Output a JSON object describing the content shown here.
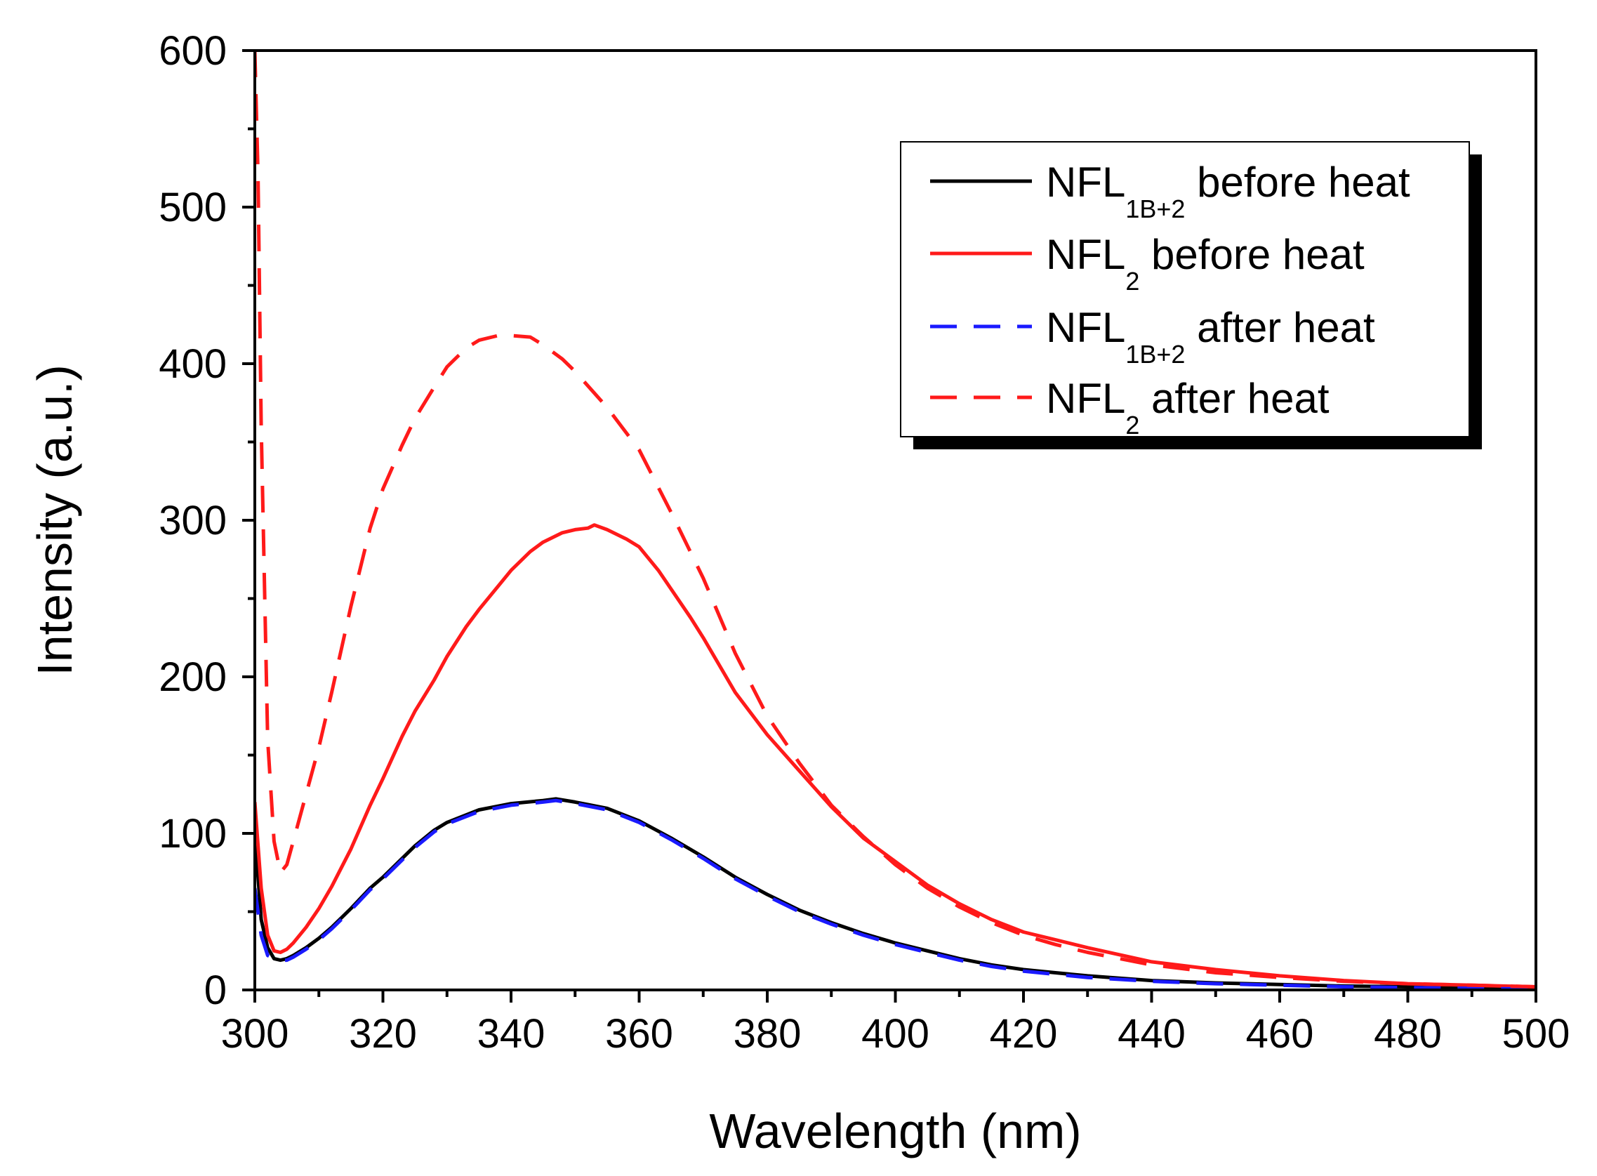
{
  "chart_data": {
    "type": "line",
    "title": "",
    "xlabel": "Wavelength (nm)",
    "ylabel": "Intensity (a.u.)",
    "xlim": [
      300,
      500
    ],
    "ylim": [
      0,
      600
    ],
    "xticks": [
      "300",
      "320",
      "340",
      "360",
      "380",
      "400",
      "420",
      "440",
      "460",
      "480",
      "500"
    ],
    "yticks": [
      "0",
      "100",
      "200",
      "300",
      "400",
      "500",
      "600"
    ],
    "grid": false,
    "legend_position": "top-right",
    "series": [
      {
        "name": "NFL1B+2 before heat",
        "legend_main": "NFL",
        "legend_sub": "1B+2",
        "legend_rest": " before heat",
        "color": "#000000",
        "dash": "solid",
        "x": [
          300,
          301,
          302,
          303,
          304,
          305,
          306,
          308,
          310,
          312,
          315,
          318,
          320,
          322,
          325,
          328,
          330,
          335,
          340,
          345,
          347,
          350,
          355,
          360,
          365,
          370,
          375,
          380,
          385,
          390,
          395,
          400,
          405,
          410,
          415,
          420,
          425,
          430,
          440,
          450,
          460,
          470,
          480,
          490,
          500
        ],
        "y": [
          100,
          45,
          27,
          20,
          19,
          20,
          22,
          27,
          33,
          40,
          52,
          65,
          72,
          80,
          92,
          102,
          107,
          115,
          119,
          121,
          122,
          120,
          116,
          108,
          97,
          85,
          72,
          61,
          51,
          43,
          36,
          30,
          25,
          20,
          16,
          13,
          11,
          9,
          6,
          4.5,
          3.5,
          2.5,
          2,
          1.5,
          1
        ]
      },
      {
        "name": "NFL2 before heat",
        "legend_main": "NFL",
        "legend_sub": "2",
        "legend_rest": " before heat",
        "color": "#ff1a1a",
        "dash": "solid",
        "x": [
          300,
          301,
          302,
          303,
          304,
          305,
          306,
          308,
          310,
          312,
          315,
          318,
          320,
          323,
          325,
          328,
          330,
          333,
          335,
          338,
          340,
          343,
          345,
          348,
          350,
          352,
          353,
          355,
          358,
          360,
          363,
          365,
          368,
          370,
          375,
          380,
          385,
          390,
          395,
          400,
          405,
          410,
          415,
          420,
          425,
          430,
          440,
          450,
          460,
          470,
          480,
          490,
          500
        ],
        "y": [
          120,
          65,
          35,
          25,
          24,
          26,
          30,
          40,
          52,
          66,
          90,
          118,
          135,
          162,
          178,
          198,
          213,
          232,
          243,
          258,
          268,
          280,
          286,
          292,
          294,
          295,
          297,
          294,
          288,
          283,
          268,
          256,
          238,
          225,
          190,
          163,
          140,
          117,
          97,
          82,
          67,
          55,
          45,
          37,
          32,
          27,
          18,
          13,
          9,
          6,
          4,
          3,
          2
        ]
      },
      {
        "name": "NFL1B+2 after heat",
        "legend_main": "NFL",
        "legend_sub": "1B+2",
        "legend_rest": " after heat",
        "color": "#1a1aff",
        "dash": "dashed",
        "x": [
          300,
          301,
          302,
          303,
          304,
          305,
          306,
          308,
          310,
          312,
          315,
          318,
          320,
          322,
          325,
          328,
          330,
          335,
          340,
          345,
          347,
          350,
          355,
          360,
          365,
          370,
          375,
          380,
          385,
          390,
          395,
          400,
          405,
          410,
          415,
          420,
          425,
          430,
          440,
          450,
          460,
          470,
          480,
          490,
          500
        ],
        "y": [
          65,
          35,
          22,
          20,
          19,
          19,
          21,
          26,
          32,
          39,
          51,
          64,
          71,
          79,
          91,
          101,
          106,
          114,
          118,
          120,
          121,
          119,
          115,
          107,
          96,
          84,
          71,
          60,
          50,
          42,
          35,
          29,
          24,
          19,
          15,
          12,
          10,
          8,
          5.5,
          4,
          3,
          2,
          1.5,
          1,
          0.5
        ]
      },
      {
        "name": "NFL2 after heat",
        "legend_main": "NFL",
        "legend_sub": "2",
        "legend_rest": " after heat",
        "color": "#ff1a1a",
        "dash": "dashed",
        "x": [
          300,
          300.5,
          301,
          302,
          303,
          304,
          305,
          306,
          308,
          310,
          312,
          315,
          318,
          320,
          323,
          325,
          328,
          330,
          333,
          335,
          338,
          340,
          343,
          345,
          348,
          350,
          355,
          360,
          365,
          370,
          375,
          380,
          385,
          390,
          395,
          400,
          405,
          410,
          415,
          420,
          425,
          430,
          440,
          450,
          460,
          470,
          480,
          490,
          500
        ],
        "y": [
          600,
          520,
          360,
          160,
          95,
          75,
          80,
          95,
          125,
          155,
          190,
          245,
          295,
          320,
          348,
          365,
          385,
          398,
          410,
          415,
          418,
          418,
          417,
          412,
          403,
          395,
          372,
          345,
          305,
          263,
          215,
          175,
          145,
          118,
          98,
          80,
          65,
          53,
          43,
          35,
          29,
          24,
          16,
          11,
          8,
          5.5,
          4,
          3,
          2
        ]
      }
    ]
  }
}
